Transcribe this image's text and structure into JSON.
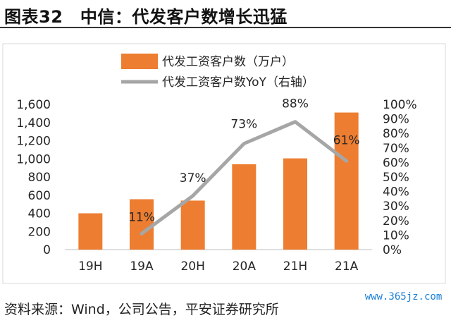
{
  "header": {
    "title": "图表32　中信：代发客户数增长迅猛"
  },
  "footer": {
    "source": "资料来源：Wind，公司公告，平安证券研究所"
  },
  "watermark": {
    "text": "www.365jz.com"
  },
  "colors": {
    "bar": "#ED7D31",
    "line": "#A6A6A6",
    "text": "#262626",
    "frame": "#D9D9D9"
  },
  "chart_data": {
    "type": "bar",
    "categories": [
      "19H",
      "19A",
      "20H",
      "20A",
      "21H",
      "21A"
    ],
    "series": [
      {
        "name": "代发工资客户数（万户）",
        "type": "bar",
        "axis": "left",
        "values": [
          400,
          555,
          540,
          940,
          1005,
          1510
        ]
      },
      {
        "name": "代发工资客户数YoY（右轴）",
        "type": "line",
        "axis": "right",
        "x": [
          "19A",
          "20H",
          "20A",
          "21H",
          "21A"
        ],
        "values": [
          11,
          37,
          73,
          88,
          61
        ],
        "labels": [
          "11%",
          "37%",
          "73%",
          "88%",
          "61%"
        ]
      }
    ],
    "y_left": {
      "ylim": [
        0,
        1600
      ],
      "ticks": [
        "0",
        "200",
        "400",
        "600",
        "800",
        "1,000",
        "1,200",
        "1,400",
        "1,600"
      ]
    },
    "y_right": {
      "ylim": [
        0,
        100
      ],
      "ticks": [
        "0%",
        "10%",
        "20%",
        "30%",
        "40%",
        "50%",
        "60%",
        "70%",
        "80%",
        "90%",
        "100%"
      ]
    },
    "legend": "top",
    "grid": false
  }
}
